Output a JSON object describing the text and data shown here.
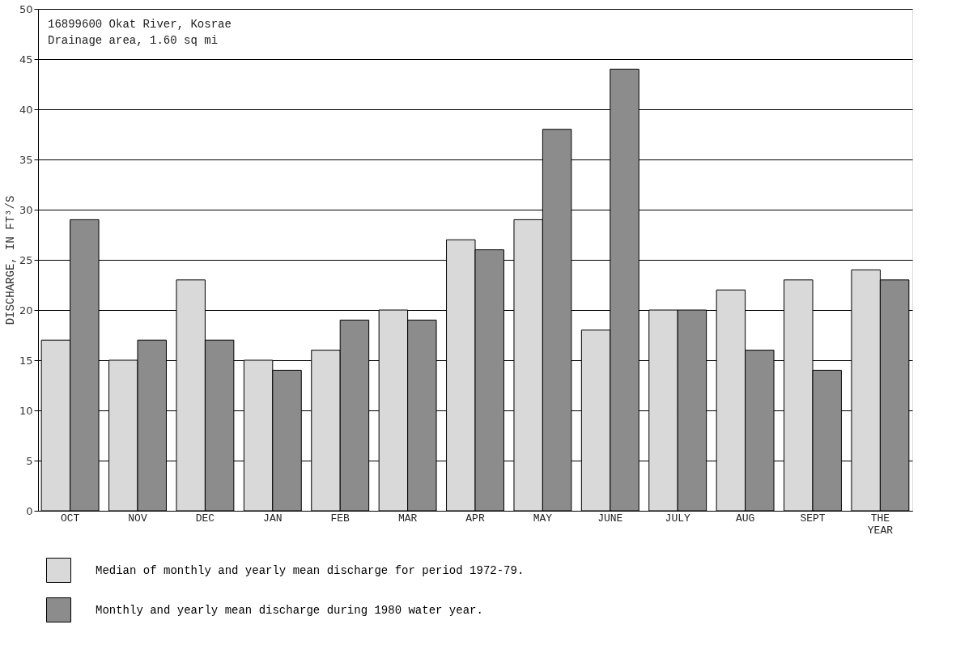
{
  "chart_data": {
    "type": "bar",
    "ylabel": "DISCHARGE, IN FT³/S",
    "categories": [
      "OCT",
      "NOV",
      "DEC",
      "JAN",
      "FEB",
      "MAR",
      "APR",
      "MAY",
      "JUNE",
      "JULY",
      "AUG",
      "SEPT",
      "THE YEAR"
    ],
    "series": [
      {
        "name": "Median of monthly and yearly mean discharge for period 1972-79.",
        "color": "#d9d9d9",
        "values": [
          17,
          15,
          23,
          15,
          16,
          20,
          27,
          29,
          18,
          20,
          22,
          23,
          24
        ]
      },
      {
        "name": "Monthly and yearly mean discharge during 1980 water year.",
        "color": "#8c8c8c",
        "values": [
          29,
          17,
          17,
          14,
          19,
          19,
          26,
          38,
          44,
          20,
          16,
          14,
          23
        ]
      }
    ],
    "ylim": [
      0,
      50
    ],
    "yticks": [
      0,
      5,
      10,
      15,
      20,
      25,
      30,
      35,
      40,
      45,
      50
    ],
    "grid": "y",
    "legend": "bottom",
    "annotations": [
      "16899600   Okat River, Kosrae",
      "           Drainage area, 1.60 sq mi"
    ]
  }
}
